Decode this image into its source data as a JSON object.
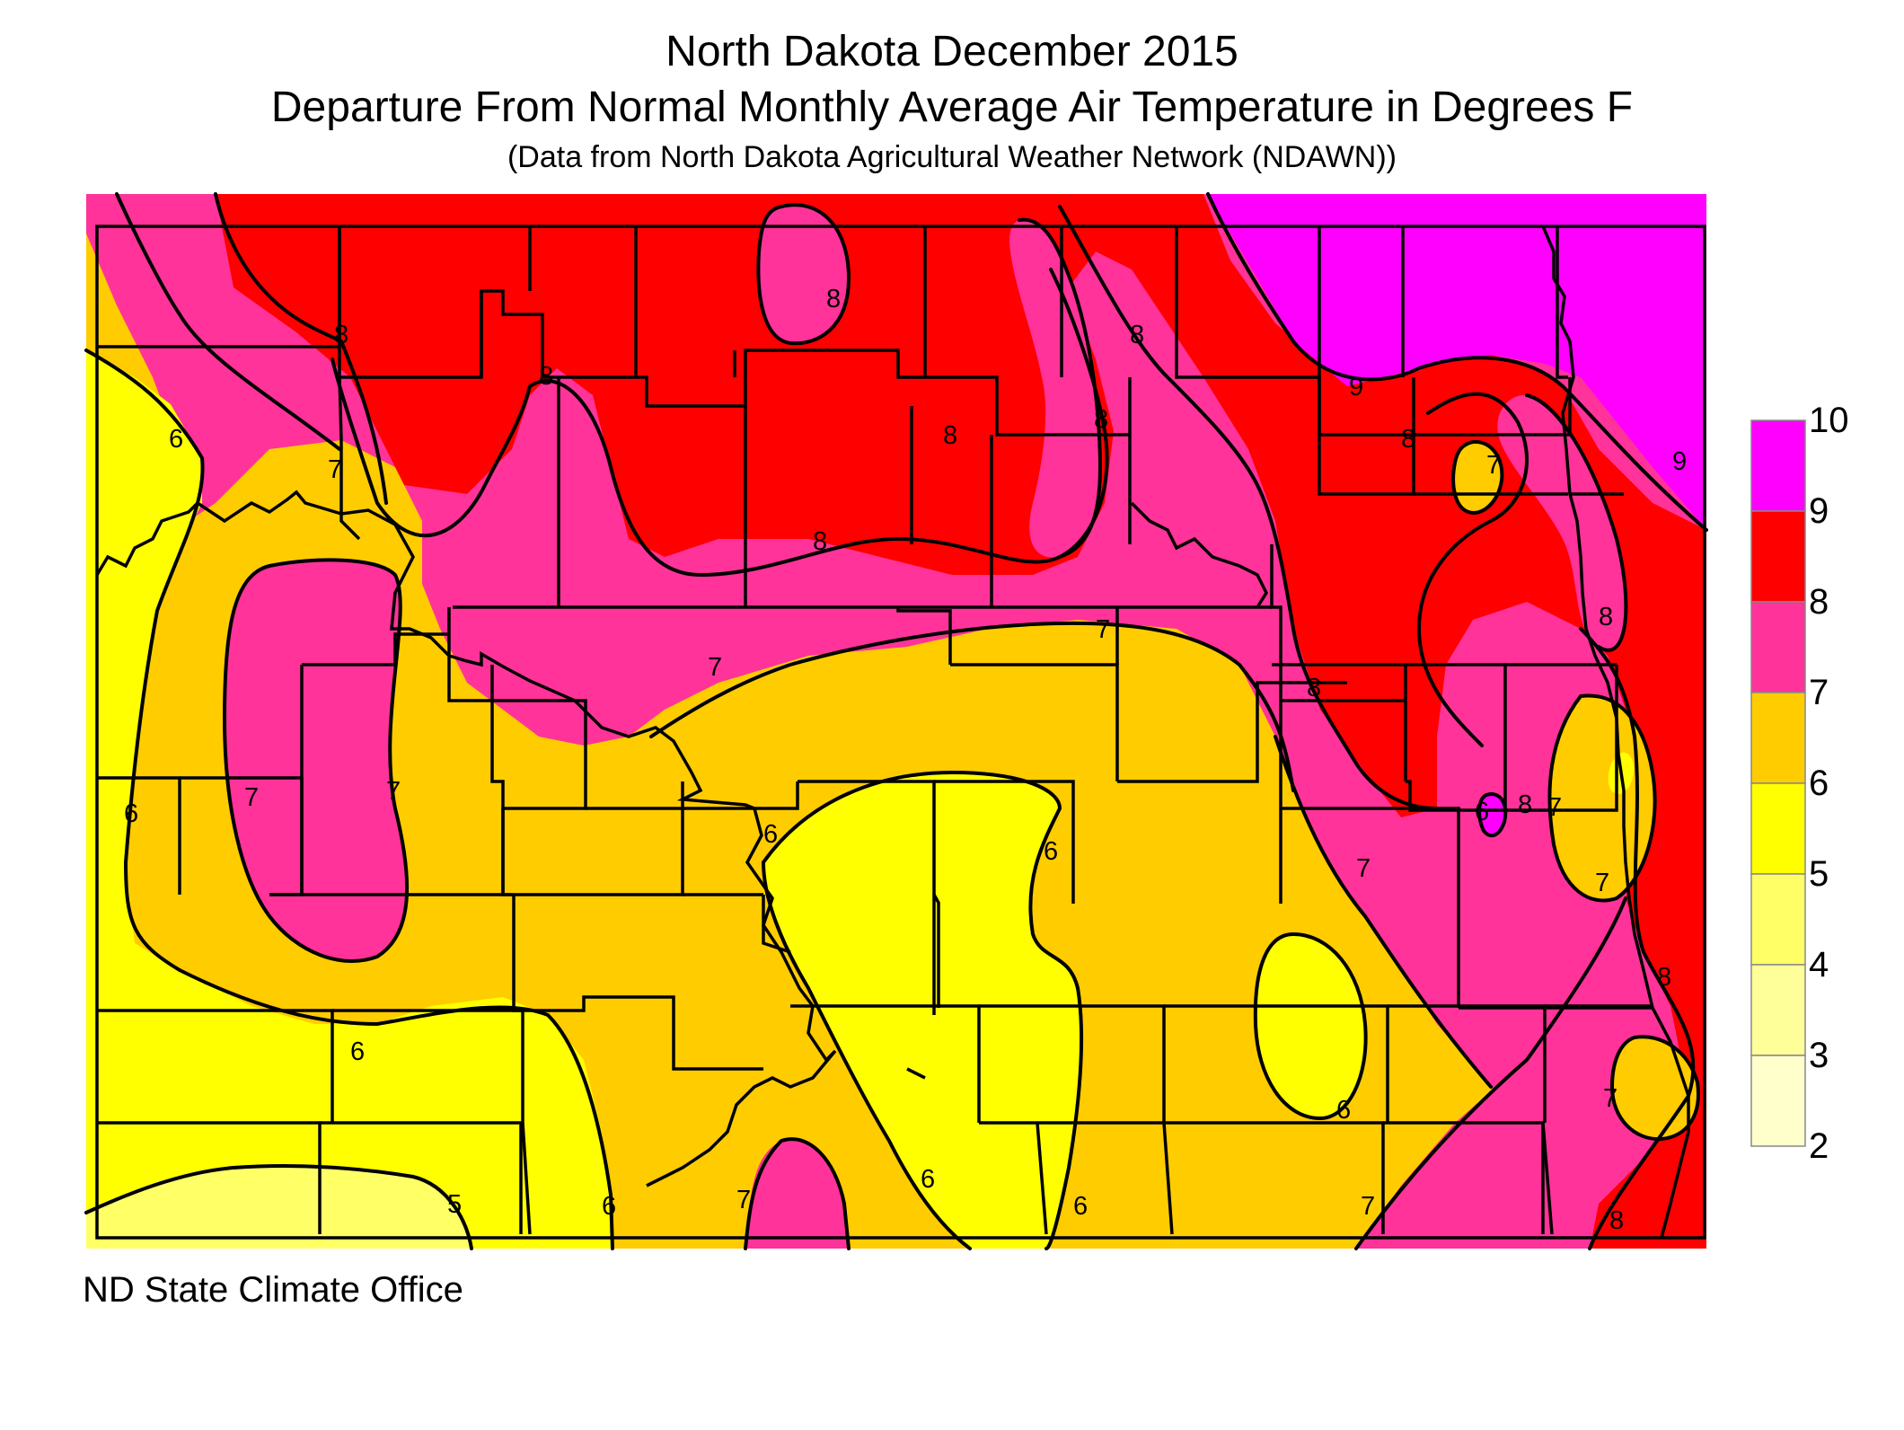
{
  "title": "North Dakota December 2015",
  "subtitle": "Departure From Normal Monthly Average Air Temperature in Degrees F",
  "source_note": "(Data from North Dakota Agricultural Weather Network (NDAWN))",
  "footer": "ND State Climate Office",
  "colors": {
    "2-3": "#ffffcc",
    "3-4": "#ffff99",
    "4-5": "#ffff66",
    "5-6": "#ffff00",
    "6-7": "#ffcc00",
    "7-8": "#ff3399",
    "8-9": "#ff0000",
    "9-10": "#ff00ff"
  },
  "legend": {
    "ticks": [
      "10",
      "9",
      "8",
      "7",
      "6",
      "5",
      "4",
      "3",
      "2"
    ],
    "bins": [
      {
        "range": "9-10",
        "color": "#ff00ff"
      },
      {
        "range": "8-9",
        "color": "#ff0000"
      },
      {
        "range": "7-8",
        "color": "#ff3399"
      },
      {
        "range": "6-7",
        "color": "#ffcc00"
      },
      {
        "range": "5-6",
        "color": "#ffff00"
      },
      {
        "range": "4-5",
        "color": "#ffff66"
      },
      {
        "range": "3-4",
        "color": "#ffff99"
      },
      {
        "range": "2-3",
        "color": "#ffffcc"
      }
    ]
  },
  "contour_labels": [
    "8",
    "8",
    "8",
    "8",
    "8",
    "8",
    "8",
    "8",
    "8",
    "8",
    "8",
    "8",
    "8",
    "9",
    "9",
    "7",
    "7",
    "7",
    "7",
    "7",
    "7",
    "7",
    "7",
    "7",
    "7",
    "7",
    "7",
    "6",
    "6",
    "6",
    "6",
    "6",
    "6",
    "6",
    "6",
    "6",
    "6",
    "5"
  ]
}
